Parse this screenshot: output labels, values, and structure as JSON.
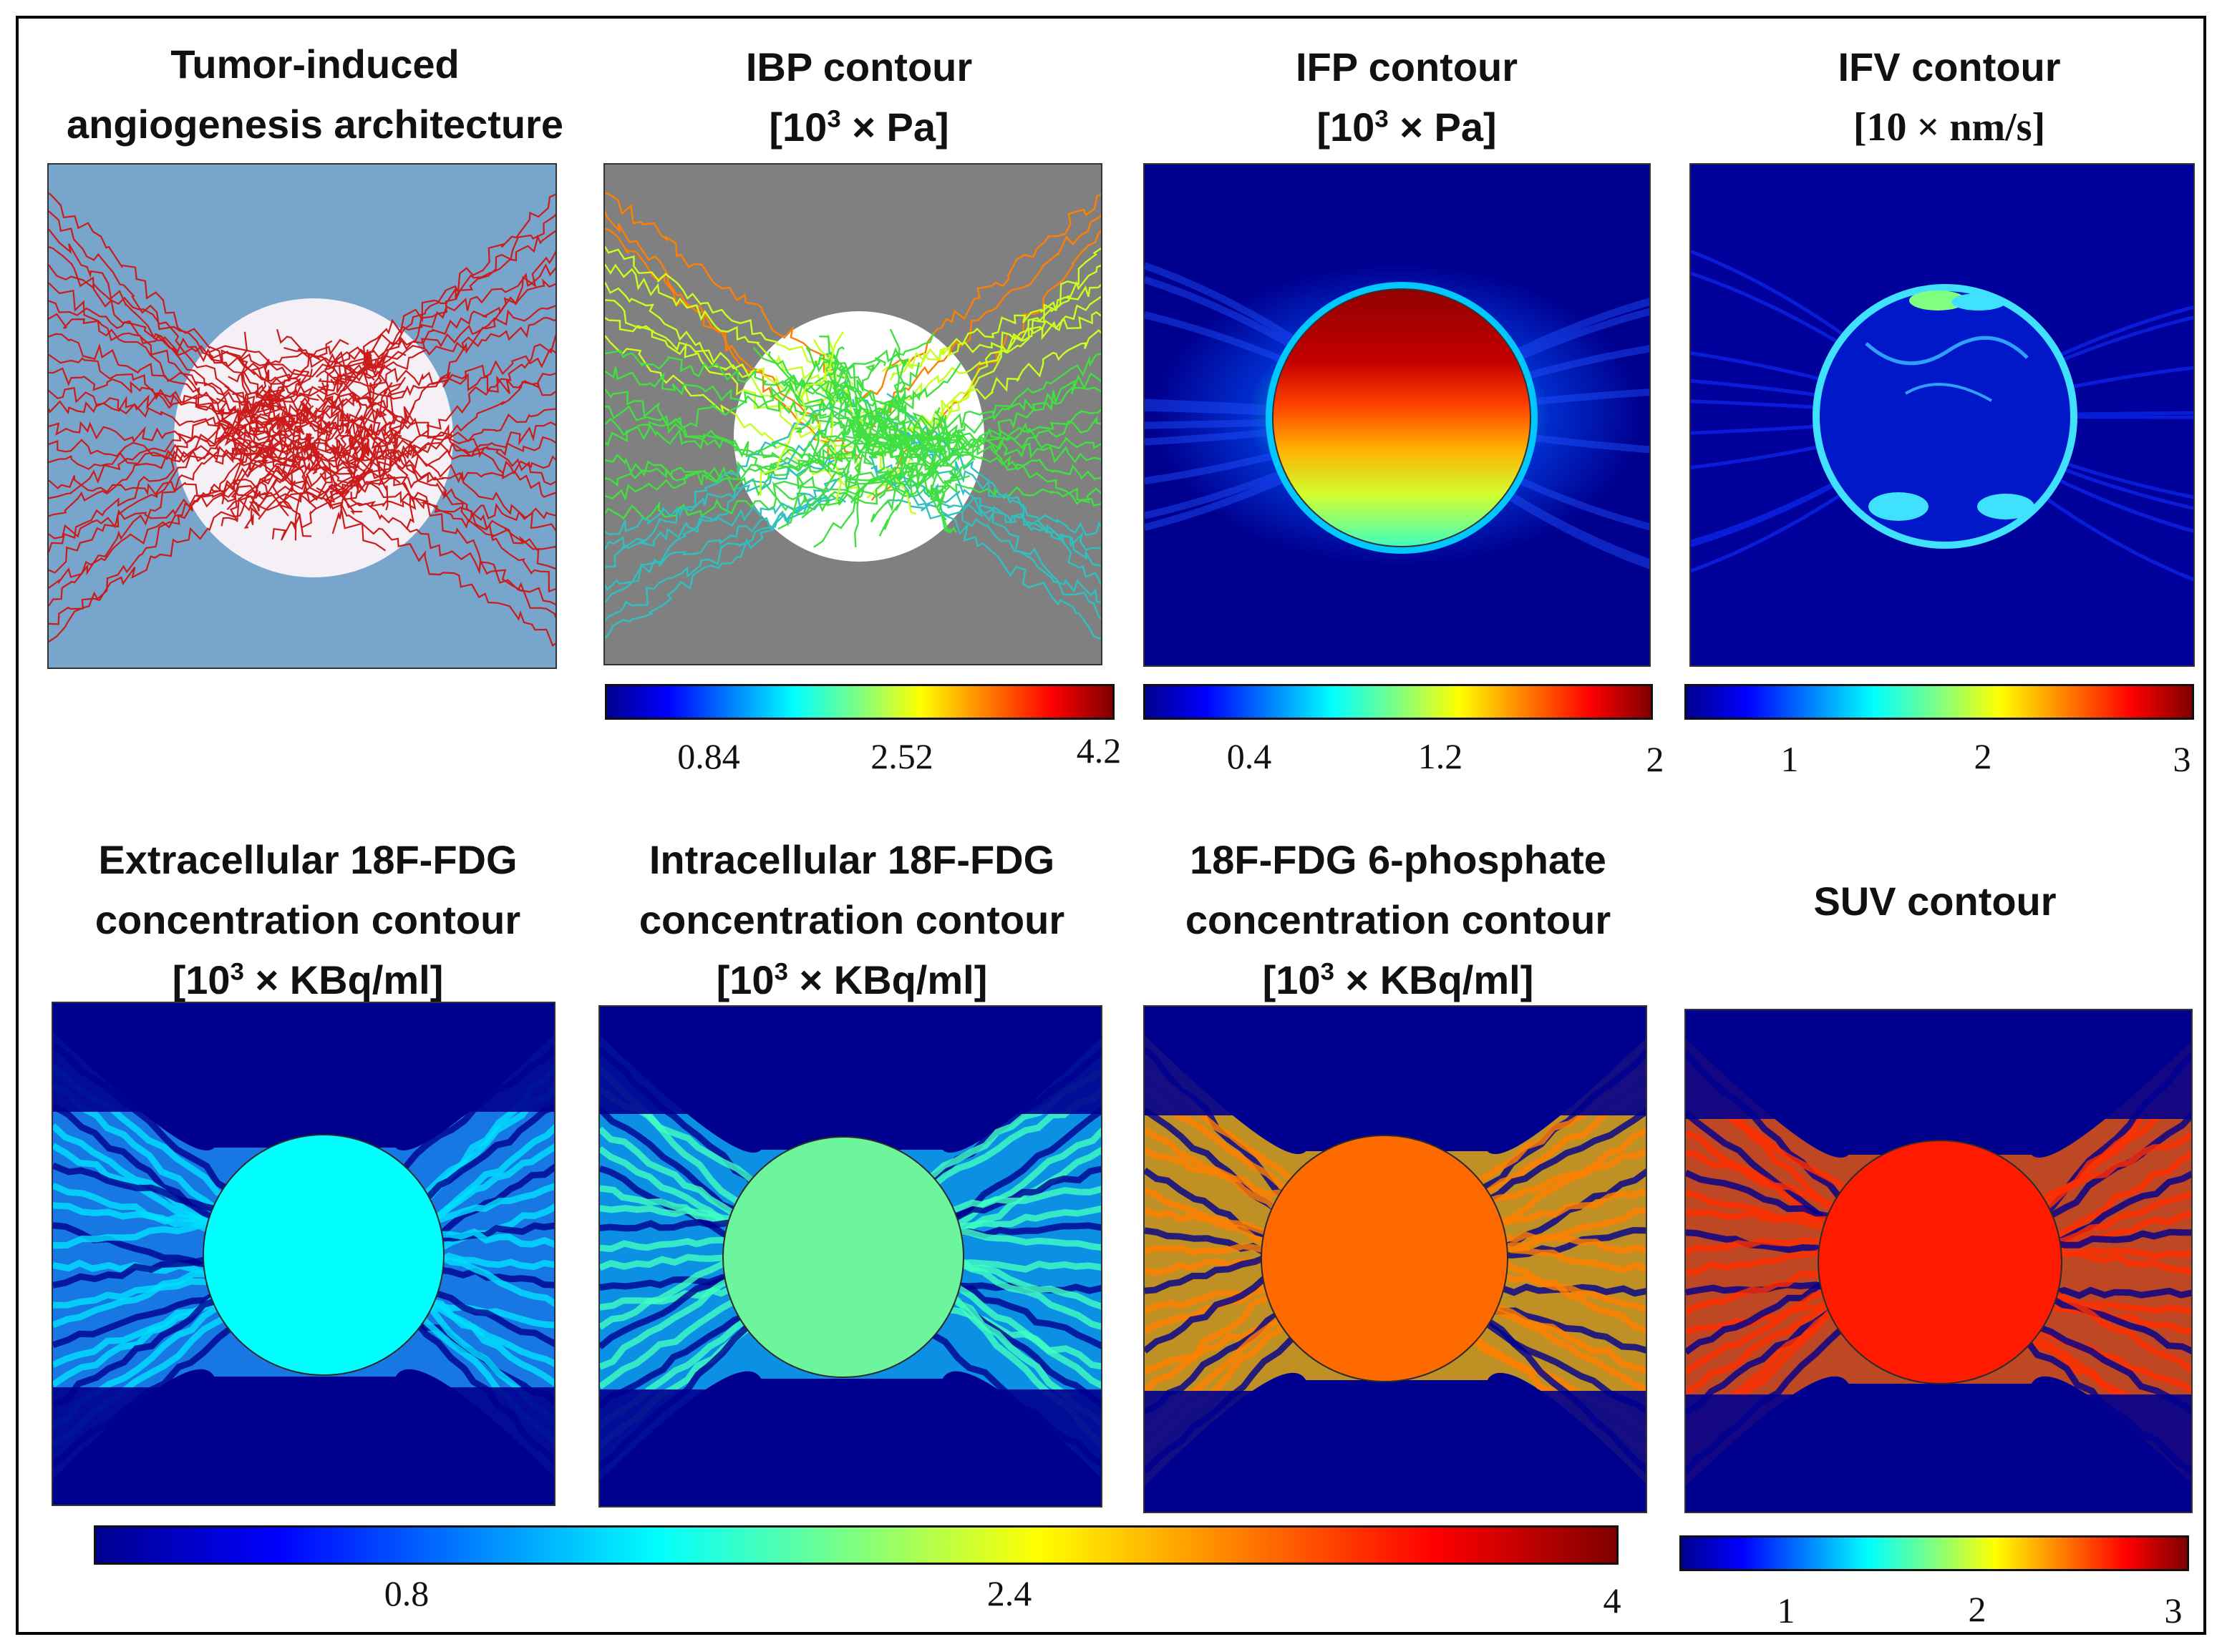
{
  "figure": {
    "colors": {
      "jet": [
        "#00008f",
        "#0000ff",
        "#00ffff",
        "#80ff80",
        "#ffff00",
        "#ff8000",
        "#ff0000",
        "#800000"
      ],
      "vessel_red": "#cc1b1b",
      "architecture_bg": "#77a5cb",
      "ibp_bg": "#808080",
      "tumor_disc": "#f4f0f6"
    },
    "row1": {
      "architecture": {
        "title_line1": "Tumor-induced",
        "title_line2": "angiogenesis architecture"
      },
      "ibp": {
        "title_line1": "IBP contour",
        "unit_open": "[10",
        "unit_exp": "3",
        "unit_close": " × Pa]",
        "ticks": [
          "0.84",
          "2.52",
          "4.2"
        ]
      },
      "ifp": {
        "title_line1": "IFP contour",
        "unit_open": "[10",
        "unit_exp": "3",
        "unit_close": " × Pa]",
        "ticks": [
          "0.4",
          "1.2",
          "2"
        ]
      },
      "ifv": {
        "title_line1": "IFV contour",
        "unit": "[10 × nm/s]",
        "ticks": [
          "1",
          "2",
          "3"
        ]
      }
    },
    "row2": {
      "extracellular": {
        "title_line1": "Extracellular 18F-FDG",
        "title_line2": "concentration contour",
        "unit_open": "[10",
        "unit_exp": "3",
        "unit_close": " × KBq/ml]"
      },
      "intracellular": {
        "title_line1": "Intracellular 18F-FDG",
        "title_line2": "concentration contour",
        "unit_open": "[10",
        "unit_exp": "3",
        "unit_close": " × KBq/ml]"
      },
      "phosphate": {
        "title_line1": "18F-FDG 6-phosphate",
        "title_line2": "concentration contour",
        "unit_open": "[10",
        "unit_exp": "3",
        "unit_close": " × KBq/ml]"
      },
      "suv": {
        "title_line1": "SUV contour",
        "ticks": [
          "1",
          "2",
          "3"
        ]
      },
      "shared_colorbar": {
        "ticks": [
          "0.8",
          "2.4",
          "4"
        ]
      }
    }
  }
}
